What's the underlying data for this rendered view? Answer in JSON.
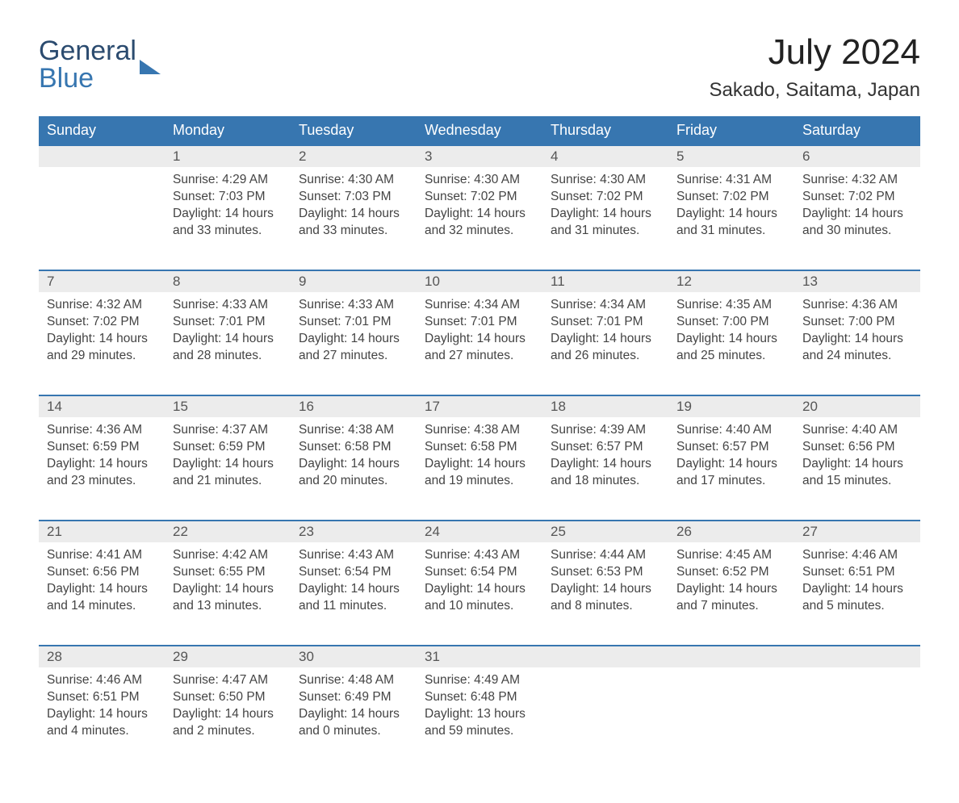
{
  "logo": {
    "line1": "General",
    "line2": "Blue"
  },
  "title": "July 2024",
  "location": "Sakado, Saitama, Japan",
  "colors": {
    "header_bg": "#3776b0",
    "header_text": "#ffffff",
    "daynum_bg": "#ececec",
    "row_border": "#3776b0",
    "body_text": "#444444",
    "page_bg": "#ffffff"
  },
  "day_names": [
    "Sunday",
    "Monday",
    "Tuesday",
    "Wednesday",
    "Thursday",
    "Friday",
    "Saturday"
  ],
  "weeks": [
    [
      null,
      {
        "n": "1",
        "sunrise": "4:29 AM",
        "sunset": "7:03 PM",
        "daylight": "14 hours and 33 minutes."
      },
      {
        "n": "2",
        "sunrise": "4:30 AM",
        "sunset": "7:03 PM",
        "daylight": "14 hours and 33 minutes."
      },
      {
        "n": "3",
        "sunrise": "4:30 AM",
        "sunset": "7:02 PM",
        "daylight": "14 hours and 32 minutes."
      },
      {
        "n": "4",
        "sunrise": "4:30 AM",
        "sunset": "7:02 PM",
        "daylight": "14 hours and 31 minutes."
      },
      {
        "n": "5",
        "sunrise": "4:31 AM",
        "sunset": "7:02 PM",
        "daylight": "14 hours and 31 minutes."
      },
      {
        "n": "6",
        "sunrise": "4:32 AM",
        "sunset": "7:02 PM",
        "daylight": "14 hours and 30 minutes."
      }
    ],
    [
      {
        "n": "7",
        "sunrise": "4:32 AM",
        "sunset": "7:02 PM",
        "daylight": "14 hours and 29 minutes."
      },
      {
        "n": "8",
        "sunrise": "4:33 AM",
        "sunset": "7:01 PM",
        "daylight": "14 hours and 28 minutes."
      },
      {
        "n": "9",
        "sunrise": "4:33 AM",
        "sunset": "7:01 PM",
        "daylight": "14 hours and 27 minutes."
      },
      {
        "n": "10",
        "sunrise": "4:34 AM",
        "sunset": "7:01 PM",
        "daylight": "14 hours and 27 minutes."
      },
      {
        "n": "11",
        "sunrise": "4:34 AM",
        "sunset": "7:01 PM",
        "daylight": "14 hours and 26 minutes."
      },
      {
        "n": "12",
        "sunrise": "4:35 AM",
        "sunset": "7:00 PM",
        "daylight": "14 hours and 25 minutes."
      },
      {
        "n": "13",
        "sunrise": "4:36 AM",
        "sunset": "7:00 PM",
        "daylight": "14 hours and 24 minutes."
      }
    ],
    [
      {
        "n": "14",
        "sunrise": "4:36 AM",
        "sunset": "6:59 PM",
        "daylight": "14 hours and 23 minutes."
      },
      {
        "n": "15",
        "sunrise": "4:37 AM",
        "sunset": "6:59 PM",
        "daylight": "14 hours and 21 minutes."
      },
      {
        "n": "16",
        "sunrise": "4:38 AM",
        "sunset": "6:58 PM",
        "daylight": "14 hours and 20 minutes."
      },
      {
        "n": "17",
        "sunrise": "4:38 AM",
        "sunset": "6:58 PM",
        "daylight": "14 hours and 19 minutes."
      },
      {
        "n": "18",
        "sunrise": "4:39 AM",
        "sunset": "6:57 PM",
        "daylight": "14 hours and 18 minutes."
      },
      {
        "n": "19",
        "sunrise": "4:40 AM",
        "sunset": "6:57 PM",
        "daylight": "14 hours and 17 minutes."
      },
      {
        "n": "20",
        "sunrise": "4:40 AM",
        "sunset": "6:56 PM",
        "daylight": "14 hours and 15 minutes."
      }
    ],
    [
      {
        "n": "21",
        "sunrise": "4:41 AM",
        "sunset": "6:56 PM",
        "daylight": "14 hours and 14 minutes."
      },
      {
        "n": "22",
        "sunrise": "4:42 AM",
        "sunset": "6:55 PM",
        "daylight": "14 hours and 13 minutes."
      },
      {
        "n": "23",
        "sunrise": "4:43 AM",
        "sunset": "6:54 PM",
        "daylight": "14 hours and 11 minutes."
      },
      {
        "n": "24",
        "sunrise": "4:43 AM",
        "sunset": "6:54 PM",
        "daylight": "14 hours and 10 minutes."
      },
      {
        "n": "25",
        "sunrise": "4:44 AM",
        "sunset": "6:53 PM",
        "daylight": "14 hours and 8 minutes."
      },
      {
        "n": "26",
        "sunrise": "4:45 AM",
        "sunset": "6:52 PM",
        "daylight": "14 hours and 7 minutes."
      },
      {
        "n": "27",
        "sunrise": "4:46 AM",
        "sunset": "6:51 PM",
        "daylight": "14 hours and 5 minutes."
      }
    ],
    [
      {
        "n": "28",
        "sunrise": "4:46 AM",
        "sunset": "6:51 PM",
        "daylight": "14 hours and 4 minutes."
      },
      {
        "n": "29",
        "sunrise": "4:47 AM",
        "sunset": "6:50 PM",
        "daylight": "14 hours and 2 minutes."
      },
      {
        "n": "30",
        "sunrise": "4:48 AM",
        "sunset": "6:49 PM",
        "daylight": "14 hours and 0 minutes."
      },
      {
        "n": "31",
        "sunrise": "4:49 AM",
        "sunset": "6:48 PM",
        "daylight": "13 hours and 59 minutes."
      },
      null,
      null,
      null
    ]
  ],
  "labels": {
    "sunrise": "Sunrise:",
    "sunset": "Sunset:",
    "daylight": "Daylight:"
  }
}
